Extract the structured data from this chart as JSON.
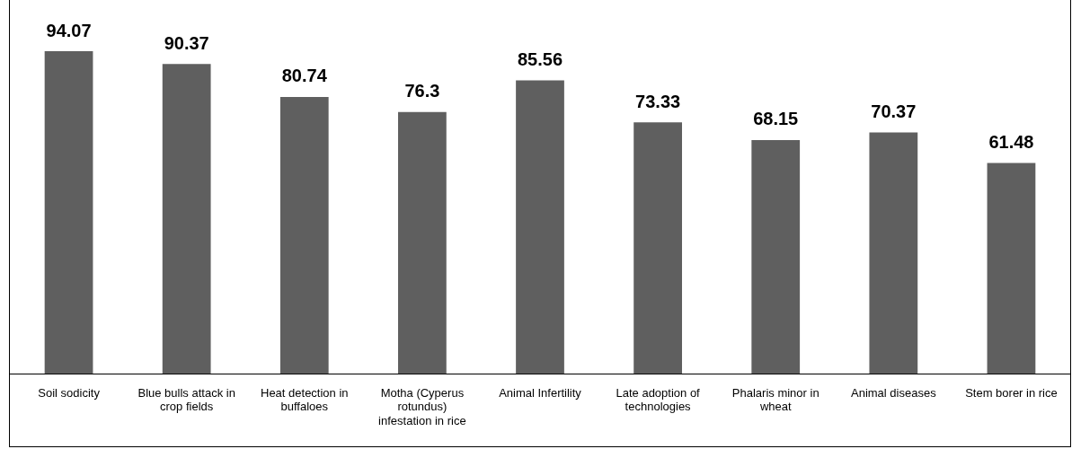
{
  "chart_data": {
    "type": "bar",
    "categories": [
      "Soil sodicity",
      "Blue bulls attack in crop fields",
      "Heat detection in buffaloes",
      "Motha (Cyperus rotundus) infestation in rice",
      "Animal Infertility",
      "Late adoption of technologies",
      "Phalaris minor in wheat",
      "Animal diseases",
      "Stem borer in rice"
    ],
    "values": [
      94.07,
      90.37,
      80.74,
      76.3,
      85.56,
      73.33,
      68.15,
      70.37,
      61.48
    ],
    "color": "#5f5f5f",
    "ylim": [
      0,
      109
    ],
    "tick_labels": "x",
    "grid": false,
    "legend": false,
    "data_labels": true
  }
}
